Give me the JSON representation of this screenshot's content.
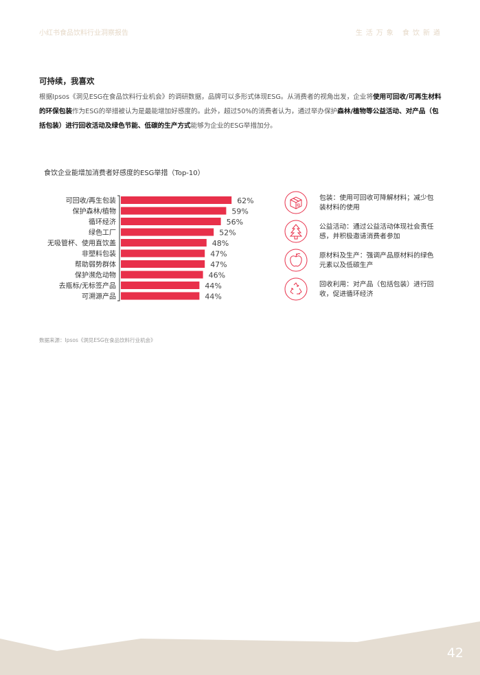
{
  "header": {
    "report_title": "小红书食品饮料行业洞察报告",
    "slogan": "生活万象 食饮新遒"
  },
  "section": {
    "title": "可持续，我喜欢",
    "para": [
      {
        "t": "根据Ipsos《洞见ESG在食品饮料行业机会》的调研数据，品牌可以多形式体现ESG。从消费者的视角出发，企业将",
        "b": false
      },
      {
        "t": "使用可回收/可再生材料的环保包装",
        "b": true
      },
      {
        "t": "作为ESG的举措被认为是最能增加好感度的。此外，超过50%的消费者认为，通过举办保护",
        "b": false
      },
      {
        "t": "森林/植物等公益活动、对产品（包括包装）进行回收活动及绿色节能、低碳的生产方式",
        "b": true
      },
      {
        "t": "能够为企业的ESG举措加分。",
        "b": false
      }
    ]
  },
  "chart_data": {
    "type": "bar",
    "orientation": "horizontal",
    "title": "食饮企业能增加消费者好感度的ESG举措（Top-10）",
    "categories": [
      "可回收/再生包装",
      "保护森林/植物",
      "循环经济",
      "绿色工厂",
      "无吸管杯、使用直饮盖",
      "非塑料包装",
      "帮助弱势群体",
      "保护濒危动物",
      "去瓶标/无标签产品",
      "可溯源产品"
    ],
    "values": [
      62,
      59,
      56,
      52,
      48,
      47,
      47,
      46,
      44,
      44
    ],
    "value_labels": [
      "62%",
      "59%",
      "56%",
      "52%",
      "48%",
      "47%",
      "47%",
      "46%",
      "44%",
      "44%"
    ],
    "unit": "%",
    "bar_color": "#e8304a",
    "grid": false
  },
  "legend": [
    {
      "icon": "package-box-icon",
      "text": "包装：使用可回收可降解材料；减少包装材料的使用"
    },
    {
      "icon": "pine-tree-icon",
      "text": "公益活动：通过公益活动体现社会责任感，并积极邀请消费者参加"
    },
    {
      "icon": "apple-icon",
      "text": "原材料及生产：强调产品原材料的绿色元素以及低碳生产"
    },
    {
      "icon": "recycle-icon",
      "text": "回收利用：对产品（包括包装）进行回收，促进循环经济"
    }
  ],
  "source": "数据来源：Ipsos《洞见ESG在食品饮料行业机会》",
  "page_number": "42",
  "colors": {
    "accent": "#e8304a",
    "footer_band": "#e5ddd2",
    "header_text": "#e6d9c8"
  }
}
